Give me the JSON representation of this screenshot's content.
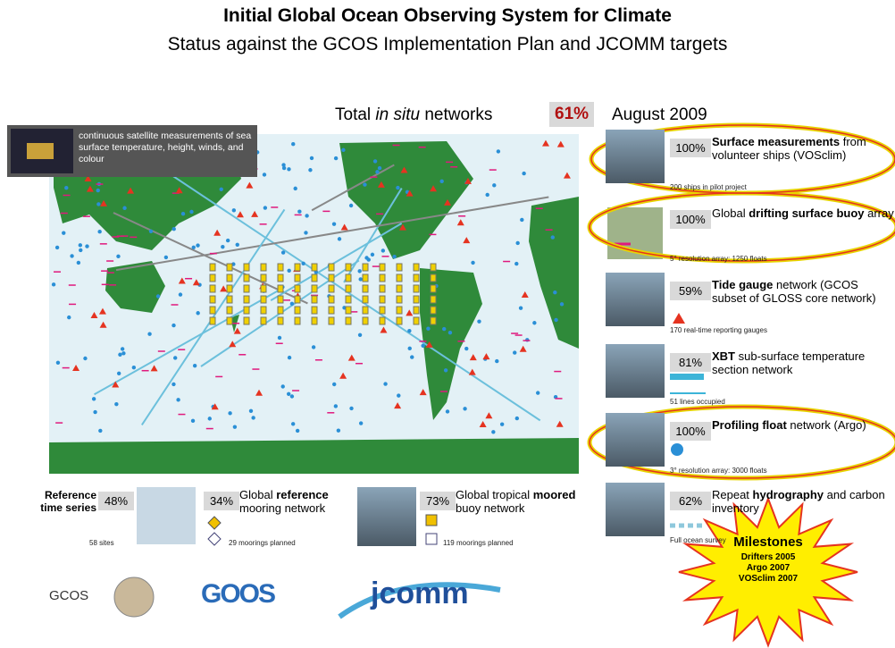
{
  "header": {
    "title": "Initial Global Ocean Observing System for Climate",
    "subtitle": "Status against the GCOS Implementation Plan and JCOMM targets"
  },
  "total": {
    "prefix": "Total",
    "italic": "in situ",
    "suffix": "networks",
    "percent": "61%",
    "date": "August 2009"
  },
  "satellite": {
    "text": "continuous satellite measurements of sea surface temperature, height, winds, and colour"
  },
  "networks": [
    {
      "percent": "100%",
      "pre": "",
      "bold": "Surface measurements",
      "post": "from volunteer ships (VOSclim)",
      "note": "200 ships in pilot project"
    },
    {
      "percent": "100%",
      "pre": "Global",
      "bold": "drifting surface buoy",
      "post": "array",
      "note": "5° resolution array: 1250 floats"
    },
    {
      "percent": "59%",
      "pre": "",
      "bold": "Tide gauge",
      "post": "network (GCOS subset of GLOSS core network)",
      "note": "170 real-time reporting gauges"
    },
    {
      "percent": "81%",
      "pre": "",
      "bold": "XBT",
      "post": "sub-surface temperature section network",
      "note": "51 lines occupied"
    },
    {
      "percent": "100%",
      "pre": "",
      "bold": "Profiling float",
      "post": "network (Argo)",
      "note": "3° resolution array: 3000 floats"
    },
    {
      "percent": "62%",
      "pre": "Repeat",
      "bold": "hydrography",
      "post": "and carbon inventory",
      "note": "Full ocean survey"
    }
  ],
  "bottom": [
    {
      "label": "Reference time series",
      "percent": "48%",
      "note": "58 sites"
    },
    {
      "percent": "34%",
      "pre": "Global",
      "bold": "reference",
      "post": "mooring network",
      "note": "29 moorings planned"
    },
    {
      "percent": "73%",
      "pre": "Global tropical",
      "bold": "moored",
      "post": "buoy network",
      "note": "119 moorings planned"
    }
  ],
  "milestones": {
    "title": "Milestones",
    "items": [
      "Drifters 2005",
      "Argo 2007",
      "VOSclim 2007"
    ]
  },
  "logos": [
    "GCOS",
    "GOOS",
    "jcomm"
  ]
}
